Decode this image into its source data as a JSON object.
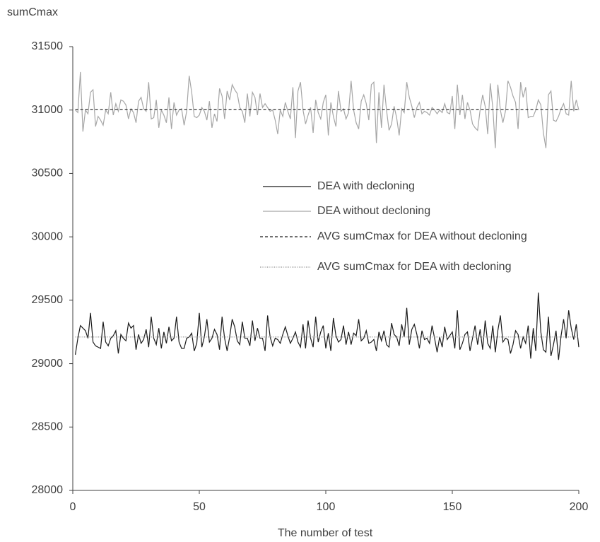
{
  "chart_data": {
    "type": "line",
    "y_label": "sumCmax",
    "x_label": "The number of test",
    "xlim": [
      0,
      200
    ],
    "xticks": [
      0,
      50,
      100,
      150,
      200
    ],
    "ylim": [
      28000,
      31500
    ],
    "yticks": [
      28000,
      28500,
      29000,
      29500,
      30000,
      30500,
      31000,
      31500
    ],
    "grid": false,
    "x": [
      1,
      2,
      3,
      4,
      5,
      6,
      7,
      8,
      9,
      10,
      11,
      12,
      13,
      14,
      15,
      16,
      17,
      18,
      19,
      20,
      21,
      22,
      23,
      24,
      25,
      26,
      27,
      28,
      29,
      30,
      31,
      32,
      33,
      34,
      35,
      36,
      37,
      38,
      39,
      40,
      41,
      42,
      43,
      44,
      45,
      46,
      47,
      48,
      49,
      50,
      51,
      52,
      53,
      54,
      55,
      56,
      57,
      58,
      59,
      60,
      61,
      62,
      63,
      64,
      65,
      66,
      67,
      68,
      69,
      70,
      71,
      72,
      73,
      74,
      75,
      76,
      77,
      78,
      79,
      80,
      81,
      82,
      83,
      84,
      85,
      86,
      87,
      88,
      89,
      90,
      91,
      92,
      93,
      94,
      95,
      96,
      97,
      98,
      99,
      100,
      101,
      102,
      103,
      104,
      105,
      106,
      107,
      108,
      109,
      110,
      111,
      112,
      113,
      114,
      115,
      116,
      117,
      118,
      119,
      120,
      121,
      122,
      123,
      124,
      125,
      126,
      127,
      128,
      129,
      130,
      131,
      132,
      133,
      134,
      135,
      136,
      137,
      138,
      139,
      140,
      141,
      142,
      143,
      144,
      145,
      146,
      147,
      148,
      149,
      150,
      151,
      152,
      153,
      154,
      155,
      156,
      157,
      158,
      159,
      160,
      161,
      162,
      163,
      164,
      165,
      166,
      167,
      168,
      169,
      170,
      171,
      172,
      173,
      174,
      175,
      176,
      177,
      178,
      179,
      180,
      181,
      182,
      183,
      184,
      185,
      186,
      187,
      188,
      189,
      190,
      191,
      192,
      193,
      194,
      195,
      196,
      197,
      198,
      199,
      200
    ],
    "series": [
      {
        "name": "DEA with decloning",
        "color": "#1a1a1a",
        "dash": "solid",
        "values": [
          29070,
          29200,
          29300,
          29280,
          29260,
          29200,
          29400,
          29170,
          29140,
          29130,
          29120,
          29330,
          29170,
          29140,
          29200,
          29220,
          29260,
          29080,
          29230,
          29200,
          29180,
          29320,
          29280,
          29300,
          29110,
          29230,
          29160,
          29190,
          29270,
          29130,
          29370,
          29200,
          29150,
          29280,
          29120,
          29250,
          29160,
          29290,
          29180,
          29200,
          29370,
          29170,
          29120,
          29120,
          29200,
          29210,
          29240,
          29100,
          29160,
          29400,
          29130,
          29210,
          29350,
          29170,
          29200,
          29270,
          29230,
          29110,
          29370,
          29200,
          29100,
          29210,
          29350,
          29290,
          29180,
          29150,
          29330,
          29200,
          29200,
          29140,
          29340,
          29180,
          29280,
          29200,
          29200,
          29100,
          29380,
          29210,
          29140,
          29200,
          29190,
          29160,
          29230,
          29290,
          29220,
          29160,
          29200,
          29250,
          29170,
          29130,
          29310,
          29120,
          29340,
          29200,
          29130,
          29370,
          29170,
          29250,
          29300,
          29120,
          29240,
          29100,
          29360,
          29220,
          29170,
          29190,
          29300,
          29150,
          29250,
          29150,
          29240,
          29220,
          29350,
          29180,
          29200,
          29260,
          29160,
          29170,
          29190,
          29100,
          29250,
          29180,
          29260,
          29150,
          29130,
          29320,
          29230,
          29210,
          29140,
          29310,
          29210,
          29440,
          29150,
          29270,
          29310,
          29230,
          29120,
          29260,
          29190,
          29200,
          29160,
          29300,
          29200,
          29090,
          29210,
          29130,
          29290,
          29190,
          29220,
          29250,
          29120,
          29420,
          29110,
          29160,
          29230,
          29250,
          29100,
          29200,
          29300,
          29150,
          29270,
          29110,
          29340,
          29160,
          29120,
          29300,
          29090,
          29260,
          29380,
          29170,
          29200,
          29190,
          29080,
          29150,
          29260,
          29230,
          29120,
          29210,
          29160,
          29300,
          29040,
          29280,
          29100,
          29560,
          29250,
          29110,
          29090,
          29370,
          29060,
          29150,
          29260,
          29030,
          29220,
          29350,
          29200,
          29420,
          29280,
          29190,
          29310,
          29130
        ]
      },
      {
        "name": "DEA without decloning",
        "color": "#a6a6a6",
        "dash": "solid",
        "values": [
          31000,
          30980,
          31300,
          30830,
          31000,
          30970,
          31140,
          31160,
          30870,
          30950,
          30920,
          30880,
          31000,
          30970,
          31140,
          30960,
          31050,
          30990,
          31080,
          31070,
          31040,
          30930,
          31010,
          30980,
          30900,
          31070,
          31100,
          31010,
          30990,
          31220,
          30930,
          30940,
          31080,
          30860,
          31000,
          30960,
          30900,
          31100,
          30850,
          31060,
          30960,
          31000,
          31010,
          30880,
          30990,
          31270,
          31140,
          30950,
          30940,
          30960,
          31020,
          30990,
          30920,
          31070,
          30860,
          30970,
          30910,
          31170,
          31110,
          30930,
          31150,
          31080,
          31200,
          31160,
          31130,
          31020,
          30990,
          30900,
          31130,
          30950,
          31140,
          31100,
          30960,
          31130,
          31020,
          31050,
          31020,
          30990,
          31000,
          30920,
          30810,
          31000,
          30950,
          31060,
          30990,
          30930,
          31180,
          30780,
          31150,
          31220,
          31000,
          30890,
          30960,
          31020,
          30820,
          31080,
          30980,
          30930,
          31060,
          31120,
          30800,
          31060,
          30950,
          30870,
          31150,
          30990,
          31010,
          30930,
          30980,
          31230,
          31000,
          30900,
          30850,
          31070,
          31120,
          31050,
          30920,
          31200,
          31220,
          30740,
          31140,
          30860,
          31200,
          31000,
          30840,
          30890,
          31030,
          30940,
          30800,
          31010,
          30980,
          31220,
          31100,
          31030,
          30940,
          31020,
          31060,
          30970,
          30990,
          30980,
          30960,
          31020,
          31000,
          30970,
          31000,
          30980,
          31050,
          30980,
          30970,
          31110,
          30850,
          31200,
          30960,
          31120,
          30930,
          31060,
          31000,
          30890,
          30860,
          30840,
          31000,
          31120,
          31030,
          30810,
          31210,
          31020,
          30700,
          31200,
          31000,
          30900,
          30990,
          31230,
          31180,
          31110,
          31060,
          30850,
          31220,
          31100,
          31180,
          30940,
          30950,
          30950,
          31000,
          31080,
          31040,
          30820,
          30700,
          31120,
          31150,
          30920,
          30910,
          30950,
          31010,
          31050,
          30970,
          30960,
          31230,
          30990,
          31080,
          31000
        ]
      },
      {
        "name": "AVG sumCmax for DEA without decloning",
        "color": "#1a1a1a",
        "dash": "dashed",
        "x": [
          1,
          200
        ],
        "values": [
          31005,
          31005
        ]
      },
      {
        "name": "AVG sumCmax for DEA with decloning",
        "color": "#8c8c8c",
        "dash": "dotted",
        "x": [
          1,
          200
        ],
        "values": [
          29210,
          29210
        ]
      }
    ]
  }
}
